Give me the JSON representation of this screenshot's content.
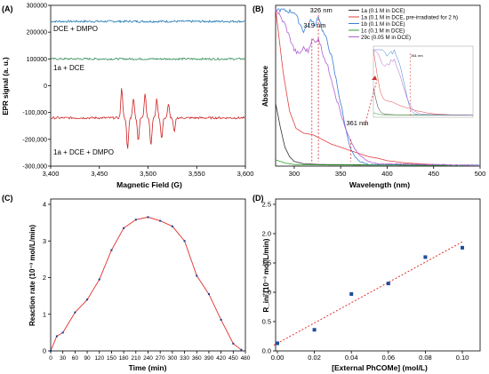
{
  "panel_labels": [
    "(A)",
    "(B)",
    "(C)",
    "(D)"
  ],
  "colors": {
    "axis": "#000000",
    "epr_top": "#1f77b4",
    "epr_mid": "#2e8b57",
    "epr_bottom": "#cc2222",
    "rate_line": "#e03030",
    "rate_marker": "#0b3d91",
    "fit_line": "#e03030",
    "fit_marker": "#1f4e9a",
    "uv_1a": "#333333",
    "uv_1a_irr": "#e04040",
    "uv_1b": "#3a7fd5",
    "uv_1c": "#2ca02c",
    "uv_29c": "#b060d0"
  },
  "chart_data": [
    {
      "panel": "(A)",
      "type": "line",
      "xlabel": "Magnetic Field (G)",
      "ylabel": "EPR signal (a. u.)",
      "xlim": [
        3400,
        3600
      ],
      "ylim": [
        -300000,
        300000
      ],
      "xticks": [
        "3,400",
        "3,450",
        "3,500",
        "3,550",
        "3,600"
      ],
      "yticks": [
        "300000",
        "200000",
        "100000",
        "0",
        "-100,000",
        "-200,000",
        "-300,000"
      ],
      "series": [
        {
          "name": "DCE + DMPO",
          "baseline": 240000,
          "noise": 4000
        },
        {
          "name": "1a + DCE",
          "baseline": 100000,
          "noise": 3500
        },
        {
          "name": "1a + DCE + DMPO",
          "baseline": -120000,
          "noise": 4000,
          "peaks": [
            {
              "x": 3473,
              "amp": 110000
            },
            {
              "x": 3479,
              "amp": -120000
            },
            {
              "x": 3485,
              "amp": 75000
            },
            {
              "x": 3490,
              "amp": -85000
            },
            {
              "x": 3497,
              "amp": 95000
            },
            {
              "x": 3503,
              "amp": -105000
            },
            {
              "x": 3509,
              "amp": 70000
            },
            {
              "x": 3514,
              "amp": -80000
            },
            {
              "x": 3521,
              "amp": 50000
            },
            {
              "x": 3527,
              "amp": -55000
            }
          ]
        }
      ],
      "legend_labels": [
        "DCE + DMPO",
        "1a + DCE",
        "1a + DCE + DMPO"
      ]
    },
    {
      "panel": "(B)",
      "type": "line",
      "xlabel": "Wavelength (nm)",
      "ylabel": "Absorbance",
      "xlim": [
        280,
        500
      ],
      "xticks": [
        "300",
        "350",
        "400",
        "450",
        "500"
      ],
      "series": [
        {
          "name": "1a (0.1 M in DCE)",
          "points": [
            [
              280,
              0.4
            ],
            [
              285,
              0.25
            ],
            [
              290,
              0.12
            ],
            [
              295,
              0.06
            ],
            [
              300,
              0.03
            ],
            [
              310,
              0.015
            ],
            [
              330,
              0.01
            ],
            [
              500,
              0.005
            ]
          ]
        },
        {
          "name": "1a (0.1 M in DCE, pre-irradiated for 2 h)",
          "points": [
            [
              280,
              1.0
            ],
            [
              288,
              0.6
            ],
            [
              295,
              0.35
            ],
            [
              302,
              0.24
            ],
            [
              310,
              0.21
            ],
            [
              320,
              0.2
            ],
            [
              330,
              0.17
            ],
            [
              340,
              0.14
            ],
            [
              350,
              0.12
            ],
            [
              360,
              0.1
            ],
            [
              370,
              0.08
            ],
            [
              380,
              0.06
            ],
            [
              390,
              0.05
            ],
            [
              400,
              0.035
            ],
            [
              420,
              0.02
            ],
            [
              450,
              0.01
            ],
            [
              480,
              0.005
            ],
            [
              500,
              0.003
            ]
          ]
        },
        {
          "name": "1b (0.1 M in DCE)",
          "points": [
            [
              280,
              1.0
            ],
            [
              300,
              0.98
            ],
            [
              305,
              0.92
            ],
            [
              310,
              0.86
            ],
            [
              315,
              0.9
            ],
            [
              319,
              0.93
            ],
            [
              322,
              0.89
            ],
            [
              326,
              0.96
            ],
            [
              330,
              0.87
            ],
            [
              335,
              0.8
            ],
            [
              340,
              0.7
            ],
            [
              345,
              0.55
            ],
            [
              350,
              0.4
            ],
            [
              355,
              0.25
            ],
            [
              360,
              0.12
            ],
            [
              365,
              0.06
            ],
            [
              370,
              0.03
            ],
            [
              380,
              0.01
            ],
            [
              500,
              0.005
            ]
          ]
        },
        {
          "name": "1c (0.1 M in DCE)",
          "points": [
            [
              280,
              0.04
            ],
            [
              290,
              0.02
            ],
            [
              300,
              0.01
            ],
            [
              320,
              0.008
            ],
            [
              500,
              0.004
            ]
          ]
        },
        {
          "name": "29c (0.05 M in DCE)",
          "points": [
            [
              280,
              1.0
            ],
            [
              290,
              0.9
            ],
            [
              300,
              0.74
            ],
            [
              305,
              0.71
            ],
            [
              310,
              0.75
            ],
            [
              315,
              0.73
            ],
            [
              319,
              0.81
            ],
            [
              323,
              0.78
            ],
            [
              326,
              0.82
            ],
            [
              330,
              0.73
            ],
            [
              335,
              0.65
            ],
            [
              340,
              0.56
            ],
            [
              345,
              0.44
            ],
            [
              350,
              0.34
            ],
            [
              355,
              0.24
            ],
            [
              360,
              0.17
            ],
            [
              365,
              0.11
            ],
            [
              370,
              0.07
            ],
            [
              380,
              0.03
            ],
            [
              390,
              0.015
            ],
            [
              500,
              0.005
            ]
          ]
        }
      ],
      "annotations": [
        "326 nm",
        "319 nm",
        "361 nm",
        "361 nm"
      ]
    },
    {
      "panel": "(C)",
      "type": "line",
      "xlabel": "Time (min)",
      "ylabel": "Reaction rate (10⁻³ mol/L/min)",
      "xlim": [
        0,
        480
      ],
      "ylim": [
        0,
        4
      ],
      "xticks": [
        "0",
        "30",
        "60",
        "90",
        "120",
        "150",
        "180",
        "210",
        "240",
        "270",
        "300",
        "330",
        "360",
        "390",
        "420",
        "450",
        "480"
      ],
      "yticks": [
        "0",
        "1",
        "2",
        "3",
        "4"
      ],
      "x": [
        0,
        15,
        30,
        60,
        90,
        120,
        150,
        180,
        210,
        240,
        270,
        300,
        330,
        360,
        390,
        420,
        450,
        470
      ],
      "values": [
        0.0,
        0.4,
        0.5,
        1.05,
        1.4,
        1.95,
        2.75,
        3.35,
        3.58,
        3.65,
        3.55,
        3.4,
        3.0,
        2.05,
        1.55,
        0.85,
        0.2,
        0.03
      ]
    },
    {
      "panel": "(D)",
      "type": "scatter",
      "xlabel": "[External PhCOMe] (mol/L)",
      "ylabel": "R_ini (10⁻³ mol/L/min)",
      "xlim": [
        0,
        0.1
      ],
      "ylim": [
        0,
        2.5
      ],
      "xticks": [
        "0.00",
        "0.02",
        "0.04",
        "0.06",
        "0.08",
        "0.10"
      ],
      "yticks": [
        "0.0",
        "0.5",
        "1.0",
        "1.5",
        "2.0",
        "2.5"
      ],
      "x": [
        0.0,
        0.02,
        0.04,
        0.06,
        0.08,
        0.1
      ],
      "values": [
        0.13,
        0.36,
        0.97,
        1.15,
        1.6,
        1.76
      ],
      "fit": {
        "intercept": 0.13,
        "slope": 17.3
      }
    }
  ]
}
